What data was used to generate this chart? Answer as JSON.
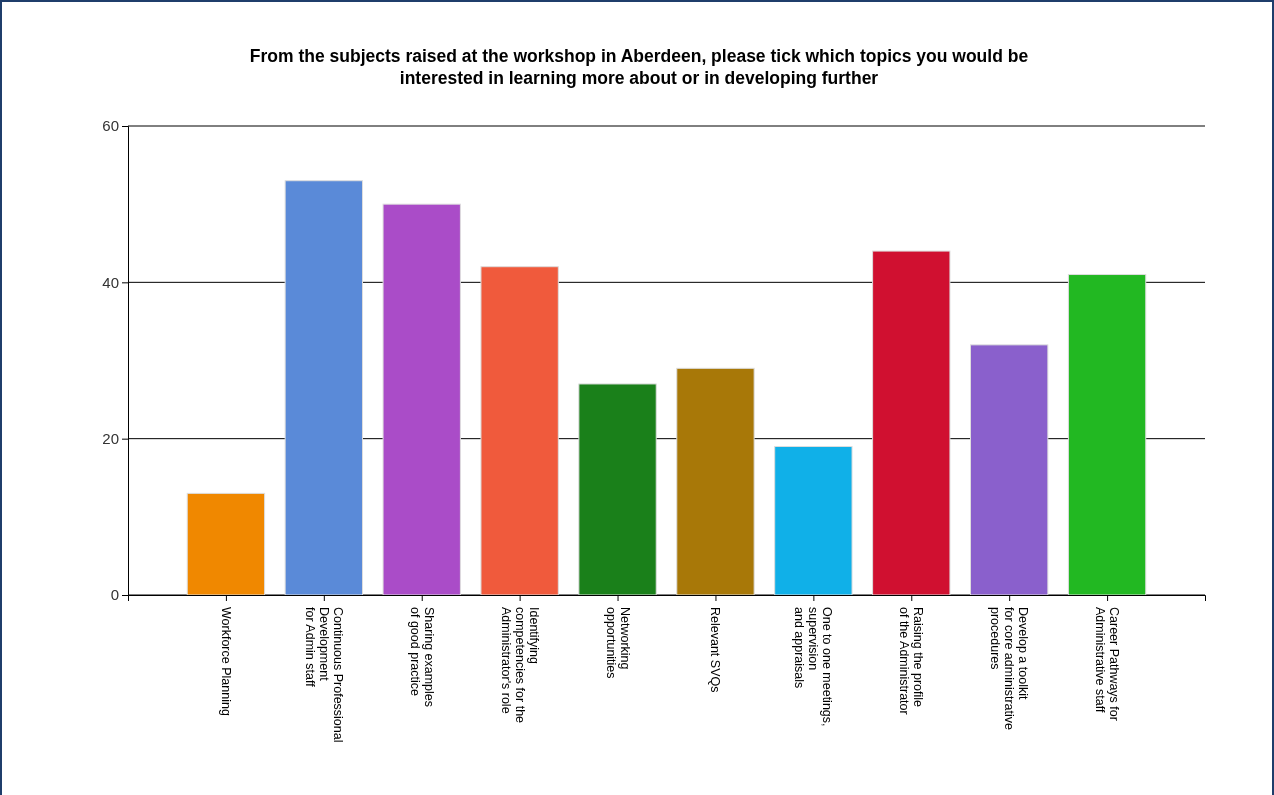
{
  "chart_data": {
    "type": "bar",
    "title": "From the subjects raised at the workshop in Aberdeen, please tick which topics you would be\ninterested in learning more about or in developing further",
    "categories": [
      "Workforce Planning",
      "Continuous Professional\nDevelopment\nfor Admin staff",
      "Sharing examples\nof good practice",
      "Identifying\ncompetencies for the\nAdministrator's role",
      "Networking\nopportunities",
      "Relevant SVQs",
      "One to one meetings,\nsupervision\nand appraisals",
      "Raising the profile\nof the Administrator",
      "Develop a toolkit\nfor core administrative\nprocedures",
      "Career Pathways for\nAdministrative staff"
    ],
    "values": [
      13,
      53,
      50,
      42,
      27,
      29,
      19,
      44,
      32,
      41
    ],
    "colors": [
      "#f08800",
      "#5a8ad8",
      "#aa4cc8",
      "#f05a3c",
      "#1a801a",
      "#a87808",
      "#10b0e8",
      "#d01030",
      "#8a60cc",
      "#22b822"
    ],
    "ylim": [
      0,
      60
    ],
    "yticks": [
      0,
      20,
      40,
      60
    ],
    "grid": "y"
  }
}
